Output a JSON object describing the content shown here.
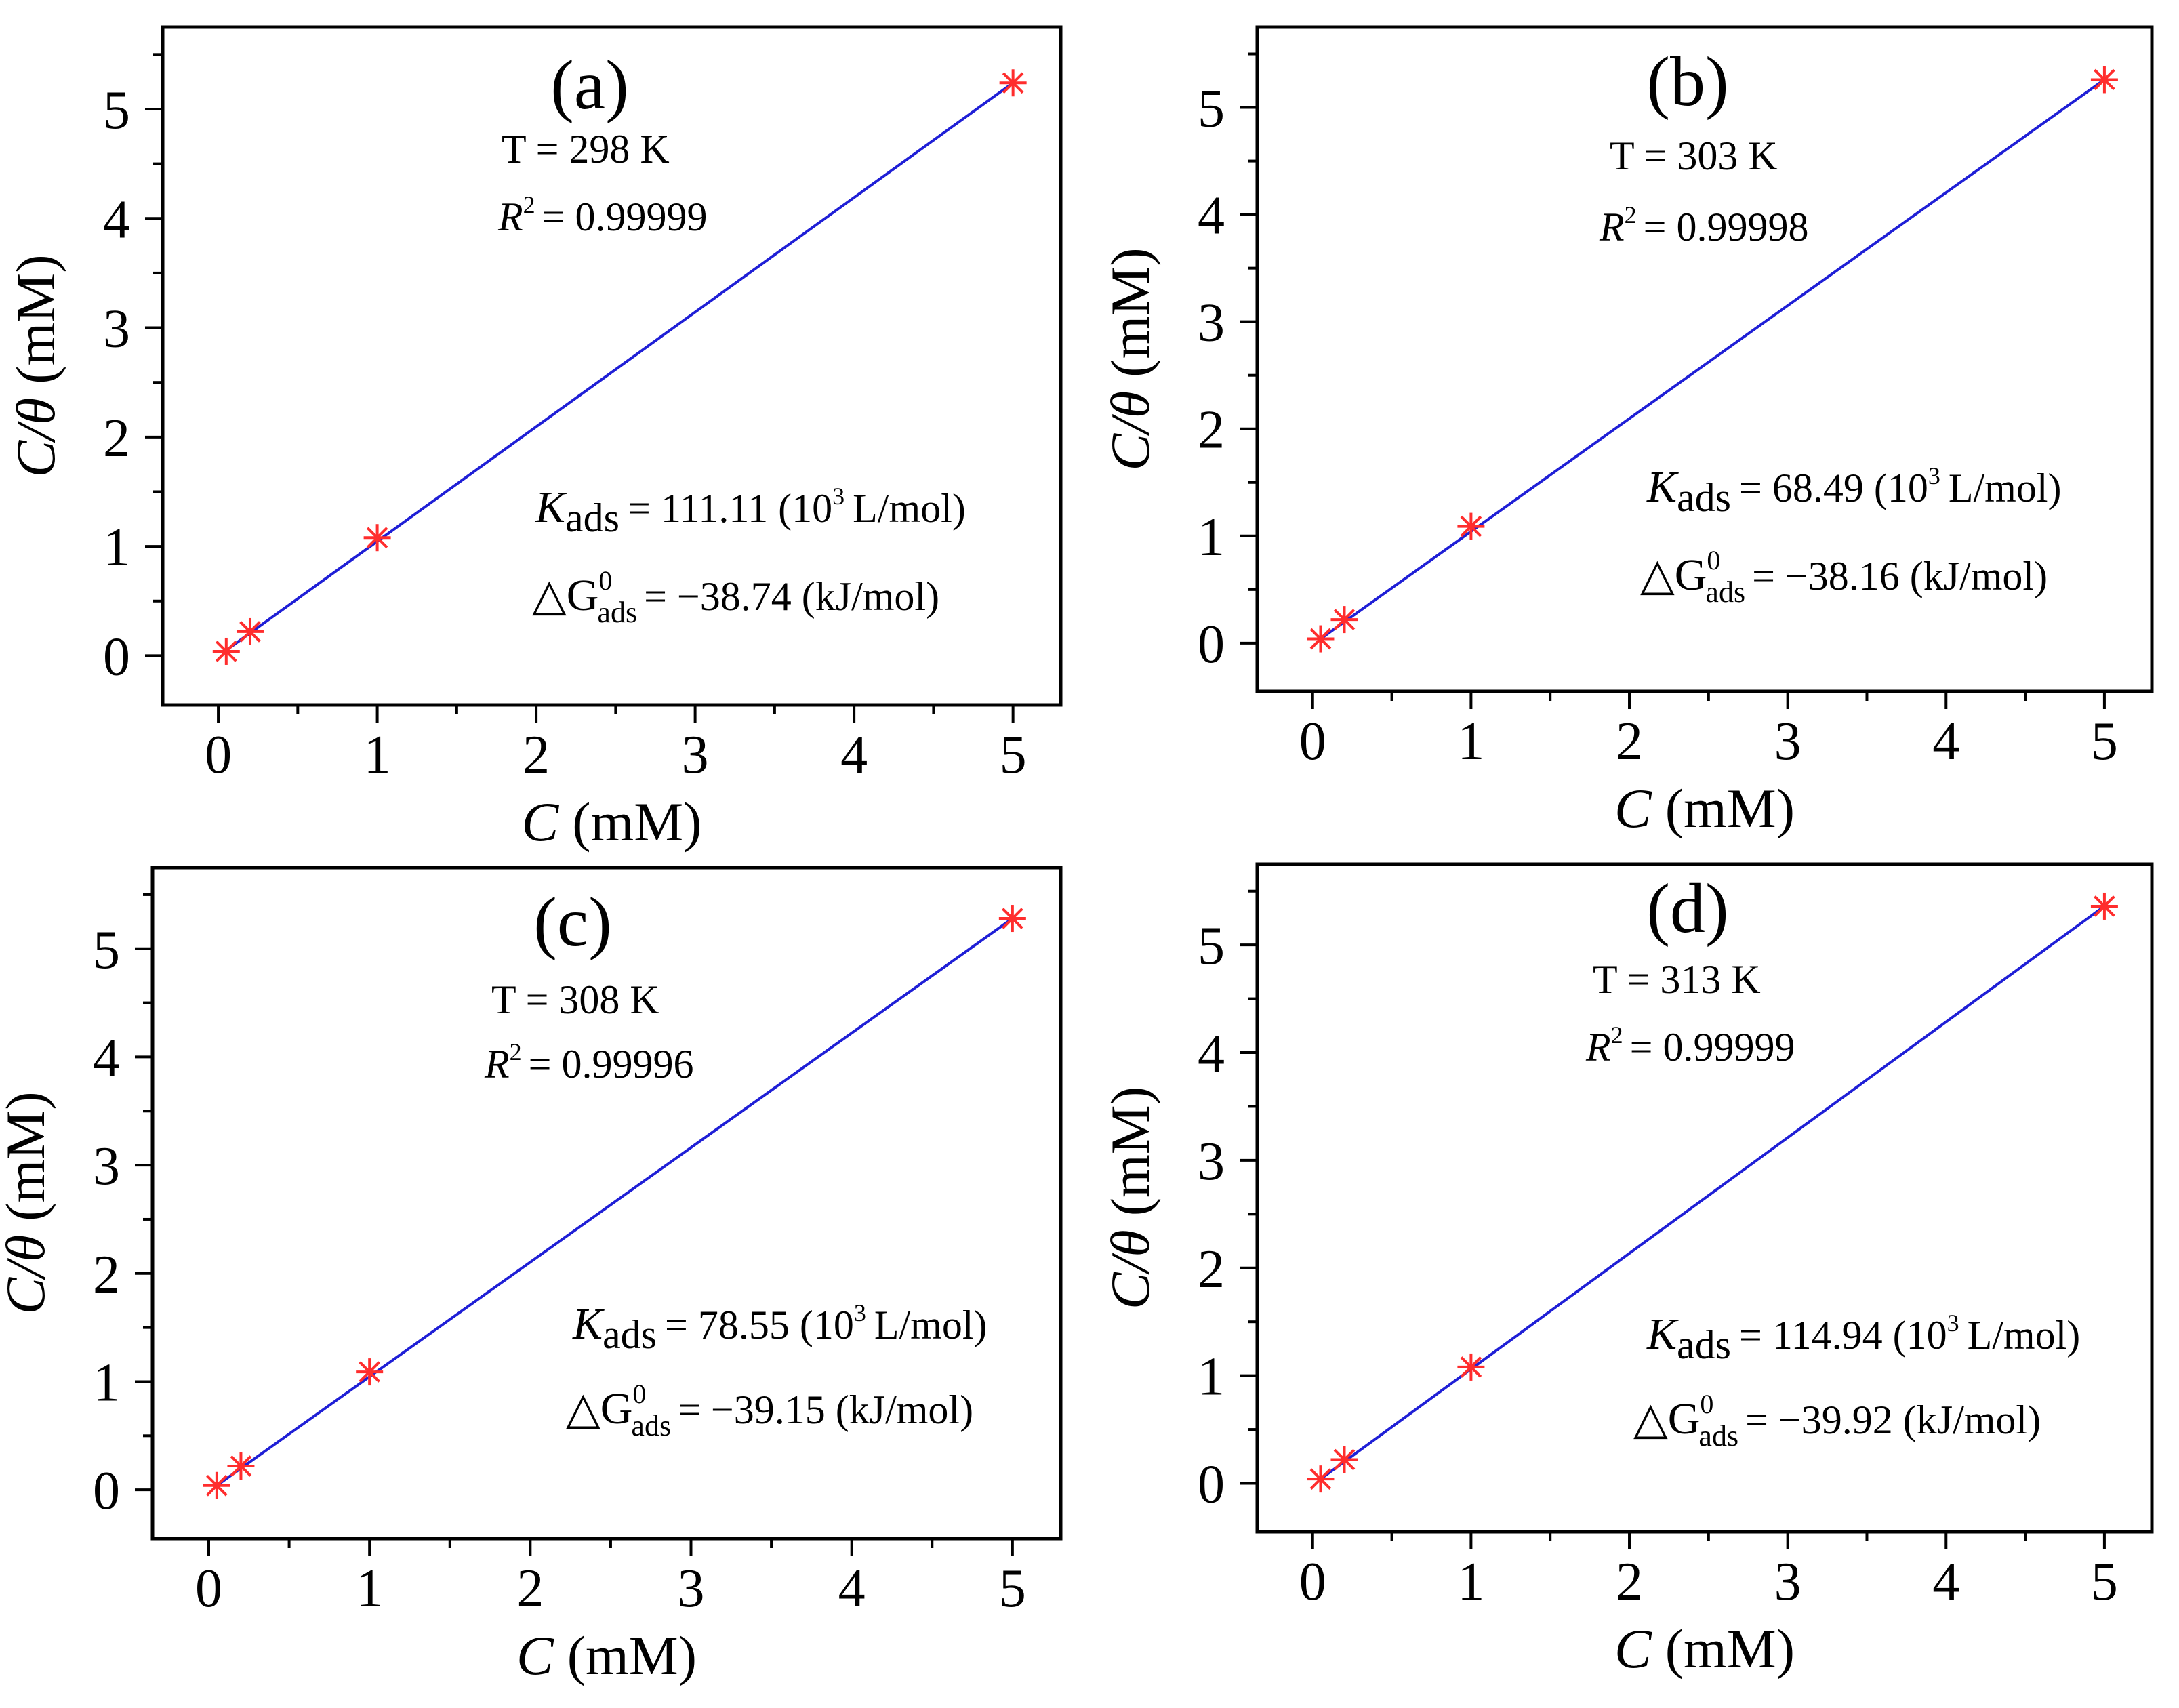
{
  "colors": {
    "line": "#1f1fd6",
    "marker": "#ff2d2d",
    "axis": "#000000"
  },
  "chart_data": [
    {
      "type": "scatter",
      "panel_label": "(a)",
      "x_label_var": "C",
      "x_label_unit": "(mM)",
      "y_label_var": "C/θ",
      "y_label_unit": "(mM)",
      "xlim": [
        -0.35,
        5.3
      ],
      "ylim": [
        -0.45,
        5.75
      ],
      "xticks": [
        0,
        1,
        2,
        3,
        4,
        5
      ],
      "yticks": [
        0,
        1,
        2,
        3,
        4,
        5
      ],
      "series": [
        {
          "name": "data",
          "x": [
            0.05,
            0.2,
            1.0,
            5.0
          ],
          "y": [
            0.04,
            0.22,
            1.08,
            5.24
          ]
        },
        {
          "name": "fit",
          "x": [
            0.05,
            5.0
          ],
          "y": [
            0.05,
            5.24
          ]
        }
      ],
      "temp_label": "T = 298 K",
      "r2_var": "R",
      "r2_sup": "2",
      "r2_value": "= 0.99999",
      "k_var": "K",
      "k_sub": "ads",
      "k_value": "= 111.11 (10",
      "k_exp": "3",
      "k_unit": "L/mol)",
      "g_prefix": "△G",
      "g_sup": "0",
      "g_sub": "ads",
      "g_value": "= −38.74 (kJ/mol)"
    },
    {
      "type": "scatter",
      "panel_label": "(b)",
      "x_label_var": "C",
      "x_label_unit": "(mM)",
      "y_label_var": "C/θ",
      "y_label_unit": "(mM)",
      "xlim": [
        -0.35,
        5.3
      ],
      "ylim": [
        -0.45,
        5.75
      ],
      "xticks": [
        0,
        1,
        2,
        3,
        4,
        5
      ],
      "yticks": [
        0,
        1,
        2,
        3,
        4,
        5
      ],
      "series": [
        {
          "name": "data",
          "x": [
            0.05,
            0.2,
            1.0,
            5.0
          ],
          "y": [
            0.04,
            0.22,
            1.09,
            5.26
          ]
        },
        {
          "name": "fit",
          "x": [
            0.05,
            5.0
          ],
          "y": [
            0.04,
            5.26
          ]
        }
      ],
      "temp_label": "T = 303 K",
      "r2_var": "R",
      "r2_sup": "2",
      "r2_value": "= 0.99998",
      "k_var": "K",
      "k_sub": "ads",
      "k_value": "= 68.49 (10",
      "k_exp": "3",
      "k_unit": "L/mol)",
      "g_prefix": "△G",
      "g_sup": "0",
      "g_sub": "ads",
      "g_value": "= −38.16 (kJ/mol)"
    },
    {
      "type": "scatter",
      "panel_label": "(c)",
      "x_label_var": "C",
      "x_label_unit": "(mM)",
      "y_label_var": "C/θ",
      "y_label_unit": "(mM)",
      "xlim": [
        -0.35,
        5.3
      ],
      "ylim": [
        -0.45,
        5.75
      ],
      "xticks": [
        0,
        1,
        2,
        3,
        4,
        5
      ],
      "yticks": [
        0,
        1,
        2,
        3,
        4,
        5
      ],
      "series": [
        {
          "name": "data",
          "x": [
            0.05,
            0.2,
            1.0,
            5.0
          ],
          "y": [
            0.04,
            0.22,
            1.09,
            5.28
          ]
        },
        {
          "name": "fit",
          "x": [
            0.05,
            5.0
          ],
          "y": [
            0.04,
            5.28
          ]
        }
      ],
      "temp_label": "T = 308 K",
      "r2_var": "R",
      "r2_sup": "2",
      "r2_value": "= 0.99996",
      "k_var": "K",
      "k_sub": "ads",
      "k_value": "= 78.55 (10",
      "k_exp": "3",
      "k_unit": "L/mol)",
      "g_prefix": "△G",
      "g_sup": "0",
      "g_sub": "ads",
      "g_value": "= −39.15 (kJ/mol)"
    },
    {
      "type": "scatter",
      "panel_label": "(d)",
      "x_label_var": "C",
      "x_label_unit": "(mM)",
      "y_label_var": "C/θ",
      "y_label_unit": "(mM)",
      "xlim": [
        -0.35,
        5.3
      ],
      "ylim": [
        -0.45,
        5.75
      ],
      "xticks": [
        0,
        1,
        2,
        3,
        4,
        5
      ],
      "yticks": [
        0,
        1,
        2,
        3,
        4,
        5
      ],
      "series": [
        {
          "name": "data",
          "x": [
            0.05,
            0.2,
            1.0,
            5.0
          ],
          "y": [
            0.04,
            0.22,
            1.08,
            5.36
          ]
        },
        {
          "name": "fit",
          "x": [
            0.05,
            5.0
          ],
          "y": [
            0.04,
            5.36
          ]
        }
      ],
      "temp_label": "T = 313 K",
      "r2_var": "R",
      "r2_sup": "2",
      "r2_value": "= 0.99999",
      "k_var": "K",
      "k_sub": "ads",
      "k_value": "= 114.94 (10",
      "k_exp": "3",
      "k_unit": "L/mol)",
      "g_prefix": "△G",
      "g_sup": "0",
      "g_sub": "ads",
      "g_value": "= −39.92 (kJ/mol)"
    }
  ]
}
